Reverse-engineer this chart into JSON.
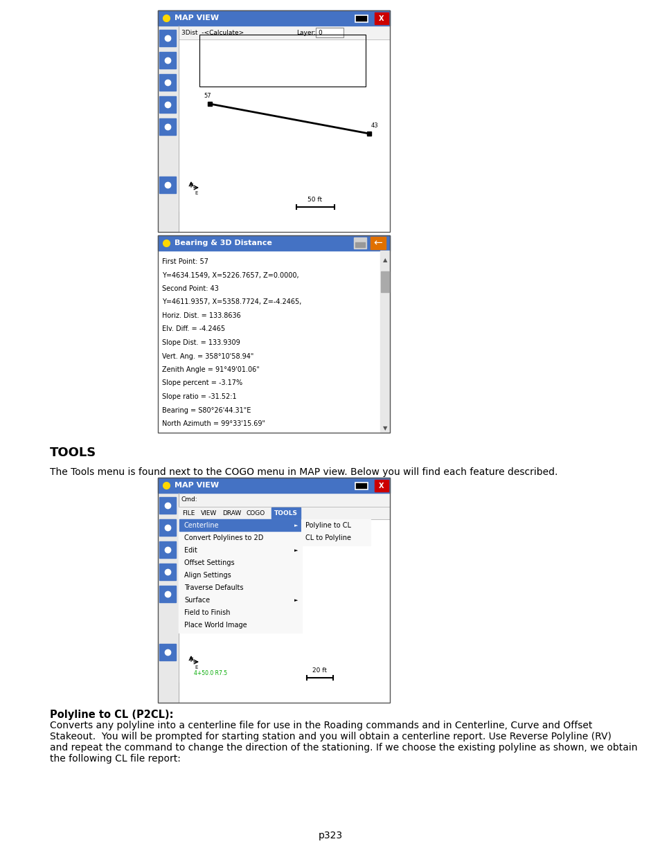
{
  "page_background": "#ffffff",
  "page_number": "p323",
  "section_title": "TOOLS",
  "section_body": "The Tools menu is found next to the COGO menu in MAP view. Below you will find each feature described.",
  "p2cl_title": "Polyline to CL (P2CL):",
  "p2cl_body1": "Converts any polyline into a centerline file for use in the Roading commands and in Centerline, Curve and Offset",
  "p2cl_body2": "Stakeout.  You will be prompted for starting station and you will obtain a centerline report. Use Reverse Polyline (RV)",
  "p2cl_body3": "and repeat the command to change the direction of the stationing. If we choose the existing polyline as shown, we obtain",
  "p2cl_body4": "the following CL file report:",
  "img1": {
    "title": "MAP VIEW",
    "title_bar_color": "#4472c4",
    "cmd_line": "3Dist  -<Calculate>",
    "layer": "0",
    "scale": "50 ft",
    "point1_label": "57",
    "point2_label": "43"
  },
  "bearing_panel": {
    "title": "Bearing & 3D Distance",
    "title_bar_color": "#4472c4",
    "lines": [
      "First Point: 57",
      "Y=4634.1549, X=5226.7657, Z=0.0000,",
      "Second Point: 43",
      "Y=4611.9357, X=5358.7724, Z=-4.2465,",
      "Horiz. Dist. = 133.8636",
      "Elv. Diff. = -4.2465",
      "Slope Dist. = 133.9309",
      "Vert. Ang. = 358°10'58.94\"",
      "Zenith Angle = 91°49'01.06\"",
      "Slope percent = -3.17%",
      "Slope ratio = -31.52:1",
      "Bearing = S80°26'44.31\"E",
      "North Azimuth = 99°33'15.69\""
    ]
  },
  "img2": {
    "title": "MAP VIEW",
    "title_bar_color": "#4472c4",
    "menu_items": [
      "FILE",
      "VIEW",
      "DRAW",
      "COGO",
      "TOOLS"
    ],
    "submenu_items": [
      "Centerline",
      "Convert Polylines to 2D",
      "Edit",
      "Offset Settings",
      "Align Settings",
      "Traverse Defaults",
      "Surface",
      "Field to Finish",
      "Place World Image"
    ],
    "submenu2_items": [
      "Polyline to CL",
      "CL to Polyline"
    ],
    "scale": "20 ft",
    "coord_label": "4+50.0 R7.5"
  }
}
